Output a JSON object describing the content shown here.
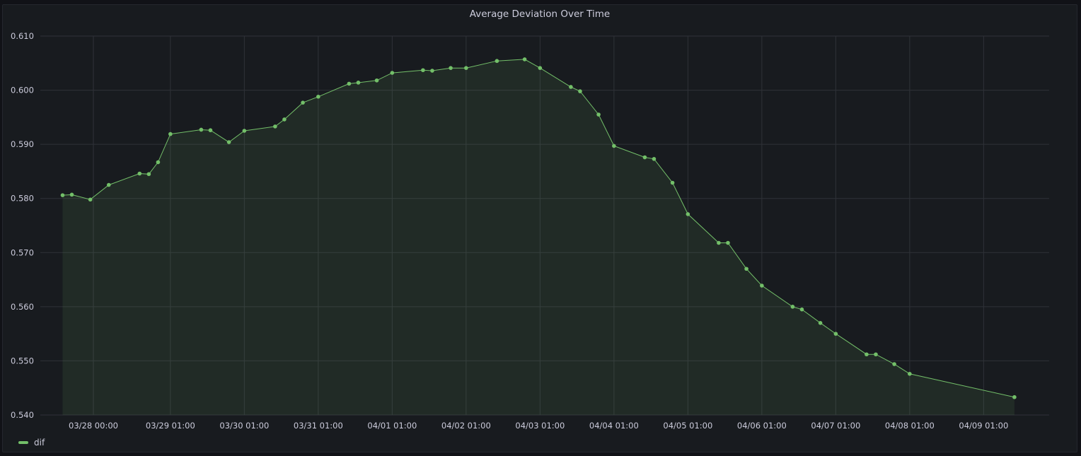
{
  "panel": {
    "title": "Average Deviation Over Time"
  },
  "chart_data": {
    "type": "line",
    "title": "Average Deviation Over Time",
    "xlabel": "",
    "ylabel": "",
    "ylim": [
      0.54,
      0.61
    ],
    "y_ticks": [
      "0.540",
      "0.550",
      "0.560",
      "0.570",
      "0.580",
      "0.590",
      "0.600",
      "0.610"
    ],
    "x_ticks": [
      "03/28 00:00",
      "03/29 01:00",
      "03/30 01:00",
      "03/31 01:00",
      "04/01 01:00",
      "04/02 01:00",
      "04/03 01:00",
      "04/04 01:00",
      "04/05 01:00",
      "04/06 01:00",
      "04/07 01:00",
      "04/08 01:00",
      "04/09 01:00"
    ],
    "grid": true,
    "legend_position": "bottom-left",
    "series": [
      {
        "name": "dif",
        "color": "#73bf69",
        "points": [
          [
            "03/27 14:00",
            0.5806
          ],
          [
            "03/27 17:00",
            0.5807
          ],
          [
            "03/27 23:00",
            0.5798
          ],
          [
            "03/28 05:00",
            0.5825
          ],
          [
            "03/28 15:00",
            0.5846
          ],
          [
            "03/28 18:00",
            0.5845
          ],
          [
            "03/28 21:00",
            0.5867
          ],
          [
            "03/29 01:00",
            0.5919
          ],
          [
            "03/29 11:00",
            0.5927
          ],
          [
            "03/29 14:00",
            0.5926
          ],
          [
            "03/29 20:00",
            0.5904
          ],
          [
            "03/30 01:00",
            0.5925
          ],
          [
            "03/30 11:00",
            0.5933
          ],
          [
            "03/30 14:00",
            0.5946
          ],
          [
            "03/30 20:00",
            0.5977
          ],
          [
            "03/31 01:00",
            0.5988
          ],
          [
            "03/31 11:00",
            0.6012
          ],
          [
            "03/31 14:00",
            0.6014
          ],
          [
            "03/31 20:00",
            0.6018
          ],
          [
            "04/01 01:00",
            0.6032
          ],
          [
            "04/01 11:00",
            0.6037
          ],
          [
            "04/01 14:00",
            0.6036
          ],
          [
            "04/01 20:00",
            0.6041
          ],
          [
            "04/02 01:00",
            0.6041
          ],
          [
            "04/02 11:00",
            0.6054
          ],
          [
            "04/02 20:00",
            0.6057
          ],
          [
            "04/03 01:00",
            0.6041
          ],
          [
            "04/03 11:00",
            0.6006
          ],
          [
            "04/03 14:00",
            0.5998
          ],
          [
            "04/03 20:00",
            0.5955
          ],
          [
            "04/04 01:00",
            0.5897
          ],
          [
            "04/04 11:00",
            0.5876
          ],
          [
            "04/04 14:00",
            0.5873
          ],
          [
            "04/04 20:00",
            0.5829
          ],
          [
            "04/05 01:00",
            0.5771
          ],
          [
            "04/05 11:00",
            0.5718
          ],
          [
            "04/05 14:00",
            0.5718
          ],
          [
            "04/05 20:00",
            0.567
          ],
          [
            "04/06 01:00",
            0.5639
          ],
          [
            "04/06 11:00",
            0.56
          ],
          [
            "04/06 14:00",
            0.5595
          ],
          [
            "04/06 20:00",
            0.557
          ],
          [
            "04/07 01:00",
            0.555
          ],
          [
            "04/07 11:00",
            0.5512
          ],
          [
            "04/07 14:00",
            0.5512
          ],
          [
            "04/07 20:00",
            0.5494
          ],
          [
            "04/08 01:00",
            0.5476
          ],
          [
            "04/09 11:00",
            0.5433
          ]
        ]
      }
    ]
  }
}
